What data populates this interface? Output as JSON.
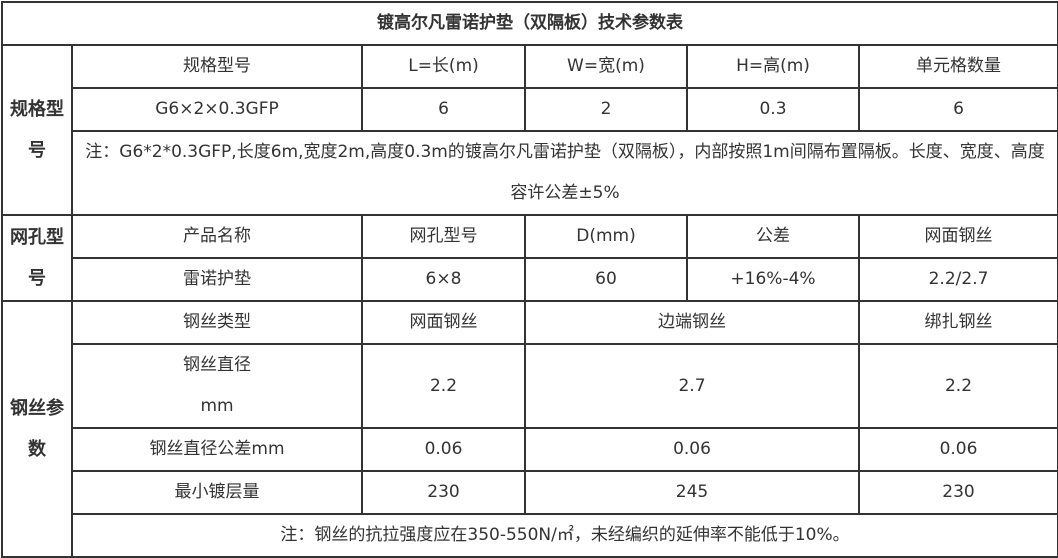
{
  "title": "镀高尔凡雷诺护垫（双隔板）技术参数表",
  "spec": {
    "side_label": "规格型号",
    "headers": [
      "规格型号",
      "L=长(m)",
      "W=宽(m)",
      "H=高(m)",
      "单元格数量"
    ],
    "row": [
      "G6×2×0.3GFP",
      "6",
      "2",
      "0.3",
      "6"
    ],
    "note": "注：G6*2*0.3GFP,长度6m,宽度2m,高度0.3m的镀高尔凡雷诺护垫（双隔板），内部按照1m间隔布置隔板。长度、宽度、高度容许公差±5%"
  },
  "mesh": {
    "side_label": "网孔型号",
    "headers": [
      "产品名称",
      "网孔型号",
      "D(mm)",
      "公差",
      "网面钢丝"
    ],
    "row": [
      "雷诺护垫",
      "6×8",
      "60",
      "+16%-4%",
      "2.2/2.7"
    ]
  },
  "wire": {
    "side_label": "钢丝参数",
    "headers": [
      "钢丝类型",
      "网面钢丝",
      "边端钢丝",
      "绑扎钢丝"
    ],
    "diameter": {
      "label_line1": "钢丝直径",
      "label_line2": "mm",
      "values": [
        "2.2",
        "2.7",
        "2.2"
      ]
    },
    "tolerance": {
      "label": "钢丝直径公差mm",
      "values": [
        "0.06",
        "0.06",
        "0.06"
      ]
    },
    "coating": {
      "label": "最小镀层量",
      "values": [
        "230",
        "245",
        "230"
      ]
    },
    "note": "注：钢丝的抗拉强度应在350-550N/㎡，未经编织的延伸率不能低于10%。"
  }
}
